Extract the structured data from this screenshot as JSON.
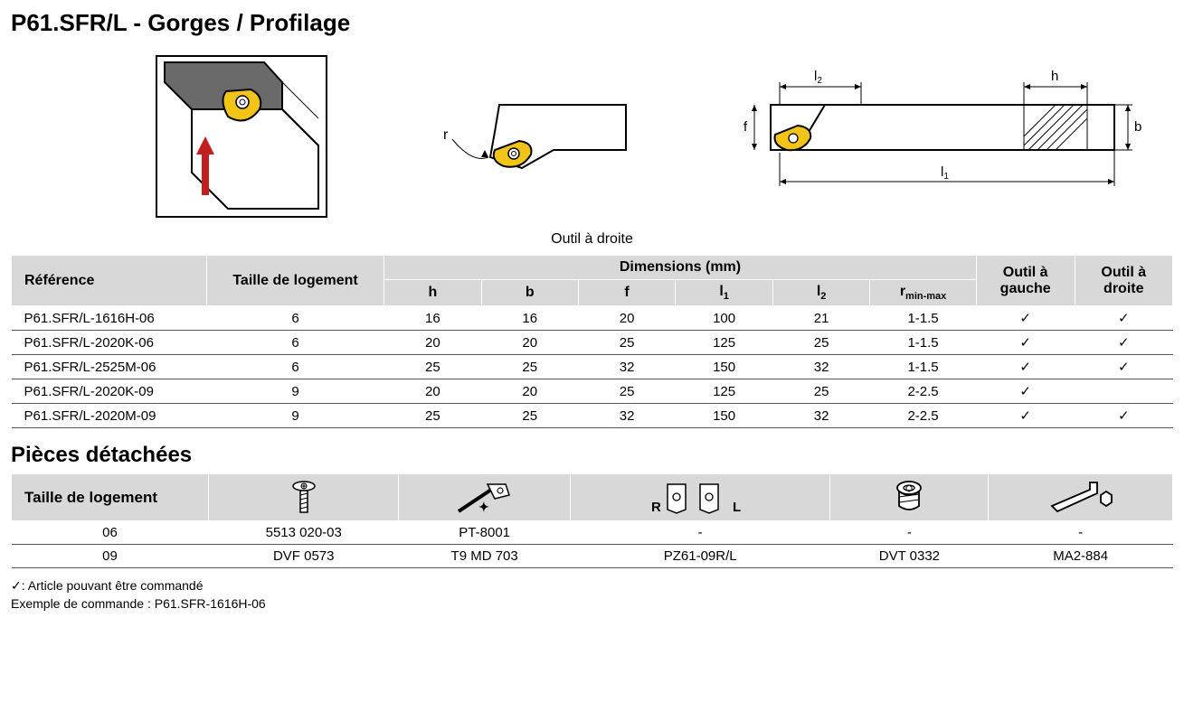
{
  "title": "P61.SFR/L - Gorges / Profilage",
  "caption": "Outil à droite",
  "main_table": {
    "header": {
      "reference": "Référence",
      "taille": "Taille de logement",
      "dimensions": "Dimensions (mm)",
      "h": "h",
      "b": "b",
      "f": "f",
      "l1": "l",
      "l1_sub": "1",
      "l2": "l",
      "l2_sub": "2",
      "r": "r",
      "r_sub": "min-max",
      "outil_gauche": "Outil à gauche",
      "outil_droite": "Outil à droite"
    },
    "rows": [
      {
        "ref": "P61.SFR/L-1616H-06",
        "taille": "6",
        "h": "16",
        "b": "16",
        "f": "20",
        "l1": "100",
        "l2": "21",
        "r": "1-1.5",
        "og": "✓",
        "od": "✓"
      },
      {
        "ref": "P61.SFR/L-2020K-06",
        "taille": "6",
        "h": "20",
        "b": "20",
        "f": "25",
        "l1": "125",
        "l2": "25",
        "r": "1-1.5",
        "og": "✓",
        "od": "✓"
      },
      {
        "ref": "P61.SFR/L-2525M-06",
        "taille": "6",
        "h": "25",
        "b": "25",
        "f": "32",
        "l1": "150",
        "l2": "32",
        "r": "1-1.5",
        "og": "✓",
        "od": "✓"
      },
      {
        "ref": "P61.SFR/L-2020K-09",
        "taille": "9",
        "h": "20",
        "b": "20",
        "f": "25",
        "l1": "125",
        "l2": "25",
        "r": "2-2.5",
        "og": "✓",
        "od": ""
      },
      {
        "ref": "P61.SFR/L-2020M-09",
        "taille": "9",
        "h": "25",
        "b": "25",
        "f": "32",
        "l1": "150",
        "l2": "32",
        "r": "2-2.5",
        "og": "✓",
        "od": "✓"
      }
    ]
  },
  "parts_heading": "Pièces détachées",
  "parts_table": {
    "header": {
      "taille": "Taille de logement",
      "icon_labels": {
        "plate_r": "R",
        "plate_l": "L"
      }
    },
    "rows": [
      {
        "taille": "06",
        "c1": "5513 020-03",
        "c2": "PT-8001",
        "c3": "-",
        "c4": "-",
        "c5": "-"
      },
      {
        "taille": "09",
        "c1": "DVF 0573",
        "c2": "T9 MD 703",
        "c3": "PZ61-09R/L",
        "c4": "DVT 0332",
        "c5": "MA2-884"
      }
    ]
  },
  "footnote1": "✓: Article pouvant être commandé",
  "footnote2": "Exemple de commande : P61.SFR-1616H-06",
  "colors": {
    "header_bg": "#d8d8d8",
    "rule": "#555555",
    "yellow": "#f2c418",
    "red": "#c02020",
    "gray_dark": "#6a6a6a"
  },
  "diagram_labels": {
    "r": "r",
    "l2": "l",
    "l2_sub": "2",
    "h": "h",
    "f": "f",
    "b": "b",
    "l1": "l",
    "l1_sub": "1"
  }
}
